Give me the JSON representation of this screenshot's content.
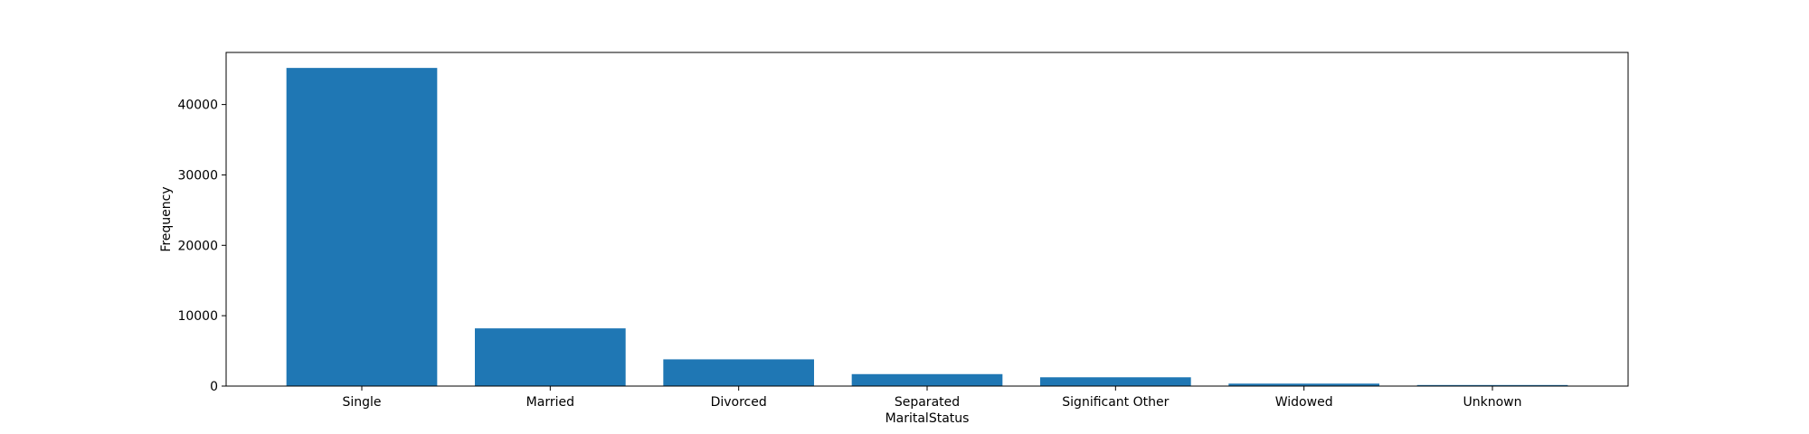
{
  "chart_data": {
    "type": "bar",
    "title": "",
    "xlabel": "MaritalStatus",
    "ylabel": "Frequency",
    "categories": [
      "Single",
      "Married",
      "Divorced",
      "Separated",
      "Significant Other",
      "Widowed",
      "Unknown"
    ],
    "values": [
      45200,
      8200,
      3800,
      1700,
      1250,
      350,
      150
    ],
    "ylim": [
      0,
      47400
    ],
    "yticks": [
      0,
      10000,
      20000,
      30000,
      40000
    ],
    "ytick_labels": [
      "0",
      "10000",
      "20000",
      "30000",
      "40000"
    ],
    "grid": false,
    "legend": "none",
    "bar_color": "#1f77b4"
  }
}
